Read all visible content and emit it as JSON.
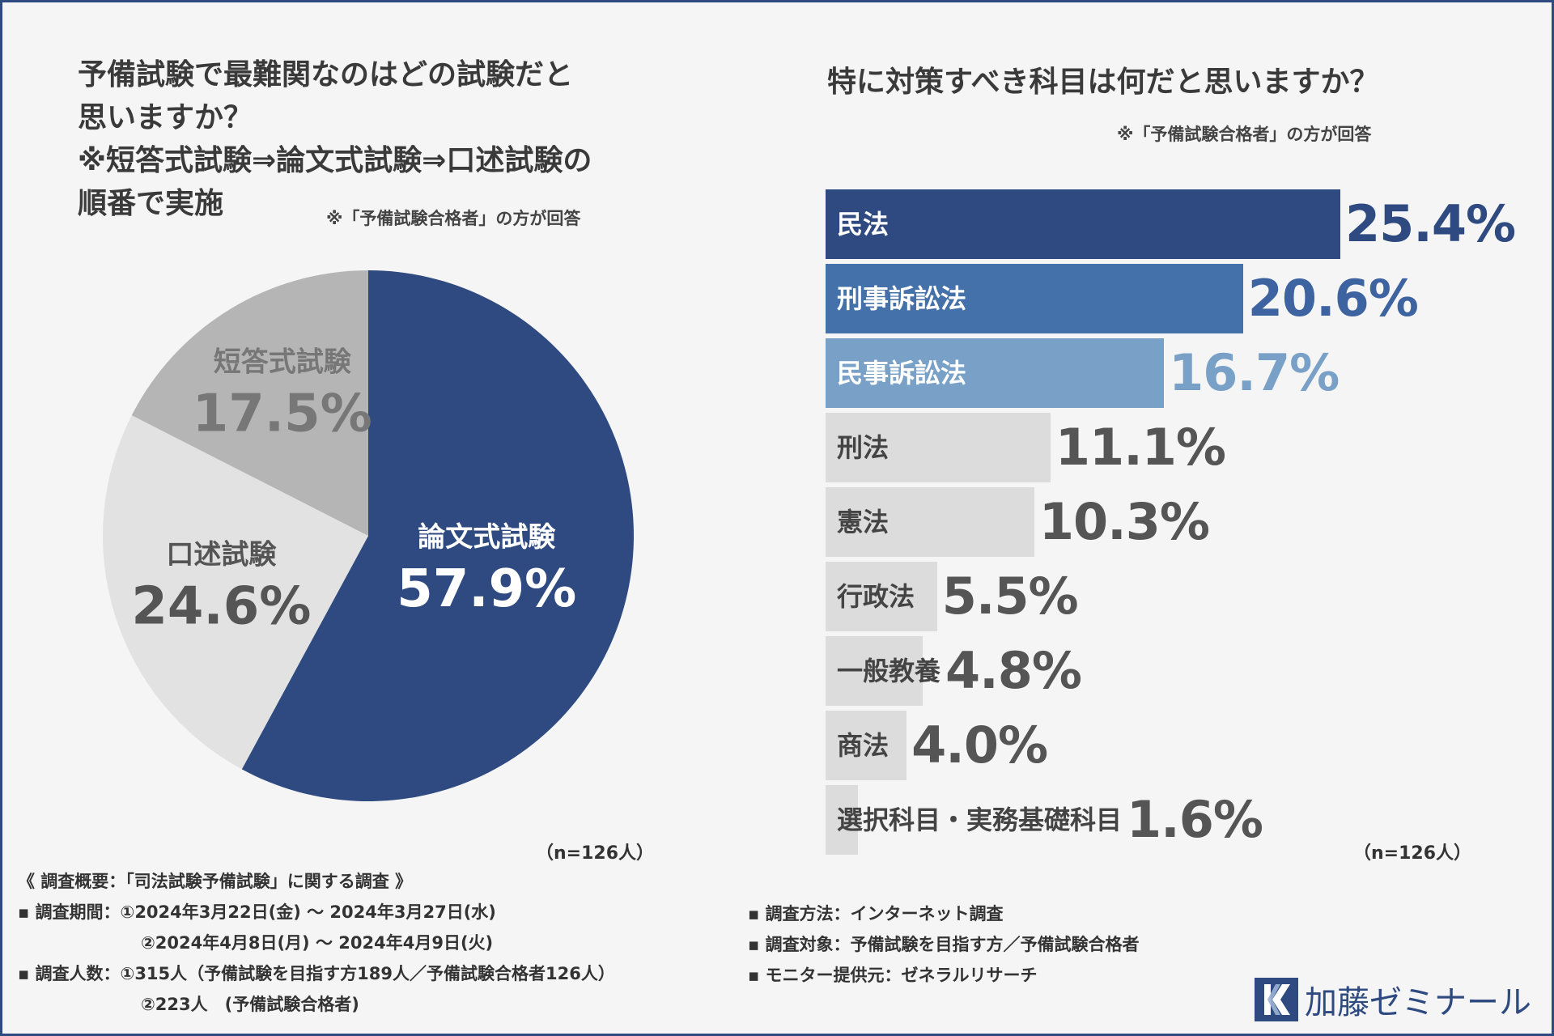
{
  "left": {
    "title": [
      "予備試験で最難関なのはどの試験だと",
      "思いますか？",
      "※短答式試験⇒論文式試験⇒口述試験の",
      "順番で実施"
    ],
    "note": "※「予備試験合格者」の方が回答",
    "n_label": "（n=126人）"
  },
  "right": {
    "title": "特に対策すべき科目は何だと思いますか？",
    "note": "※「予備試験合格者」の方が回答",
    "n_label": "（n=126人）"
  },
  "chart_data": [
    {
      "type": "pie",
      "title": "予備試験で最難関なのはどの試験だと思いますか？",
      "categories": [
        "論文式試験",
        "口述試験",
        "短答式試験"
      ],
      "values": [
        57.9,
        24.6,
        17.5
      ],
      "value_labels": [
        "57.9%",
        "24.6%",
        "17.5%"
      ],
      "colors": [
        "#2e4a80",
        "#e2e2e2",
        "#b5b5b5"
      ],
      "label_colors": [
        "#ffffff",
        "#555555",
        "#777777"
      ]
    },
    {
      "type": "bar",
      "orientation": "horizontal",
      "title": "特に対策すべき科目は何だと思いますか？",
      "categories": [
        "民法",
        "刑事訴訟法",
        "民事訴訟法",
        "刑法",
        "憲法",
        "行政法",
        "一般教養",
        "商法",
        "選択科目・実務基礎科目"
      ],
      "values": [
        25.4,
        20.6,
        16.7,
        11.1,
        10.3,
        5.5,
        4.8,
        4.0,
        1.6
      ],
      "value_labels": [
        "25.4%",
        "20.6%",
        "16.7%",
        "11.1%",
        "10.3%",
        "5.5%",
        "4.8%",
        "4.0%",
        "1.6%"
      ],
      "bar_colors": [
        "#2e4a80",
        "#4471aa",
        "#79a0c7",
        "#dcdcdc",
        "#dcdcdc",
        "#dcdcdc",
        "#dcdcdc",
        "#dcdcdc",
        "#dcdcdc"
      ],
      "label_colors": [
        "#ffffff",
        "#ffffff",
        "#ffffff",
        "#444444",
        "#444444",
        "#444444",
        "#444444",
        "#444444",
        "#444444"
      ],
      "value_colors": [
        "#2e4a80",
        "#3d63a0",
        "#79a0c7",
        "#555555",
        "#555555",
        "#555555",
        "#555555",
        "#555555",
        "#555555"
      ],
      "xlim": [
        0,
        25.4
      ]
    }
  ],
  "footer": {
    "heading": "《 調査概要：「司法試験予備試験」に関する調査 》",
    "left_lines": [
      "▪ 調査期間：①2024年3月22日(金) 〜 2024年3月27日(水)",
      "②2024年4月8日(月) 〜 2024年4月9日(火)",
      "▪ 調査人数：①315人（予備試験を目指す方189人／予備試験合格者126人）",
      "②223人　(予備試験合格者)"
    ],
    "right_lines": [
      "▪ 調査方法：インターネット調査",
      "▪ 調査対象：予備試験を目指す方／予備試験合格者",
      "▪ モニター提供元：ゼネラルリサーチ"
    ]
  },
  "logo": {
    "text": "加藤ゼミナール",
    "color": "#2e4a80"
  }
}
